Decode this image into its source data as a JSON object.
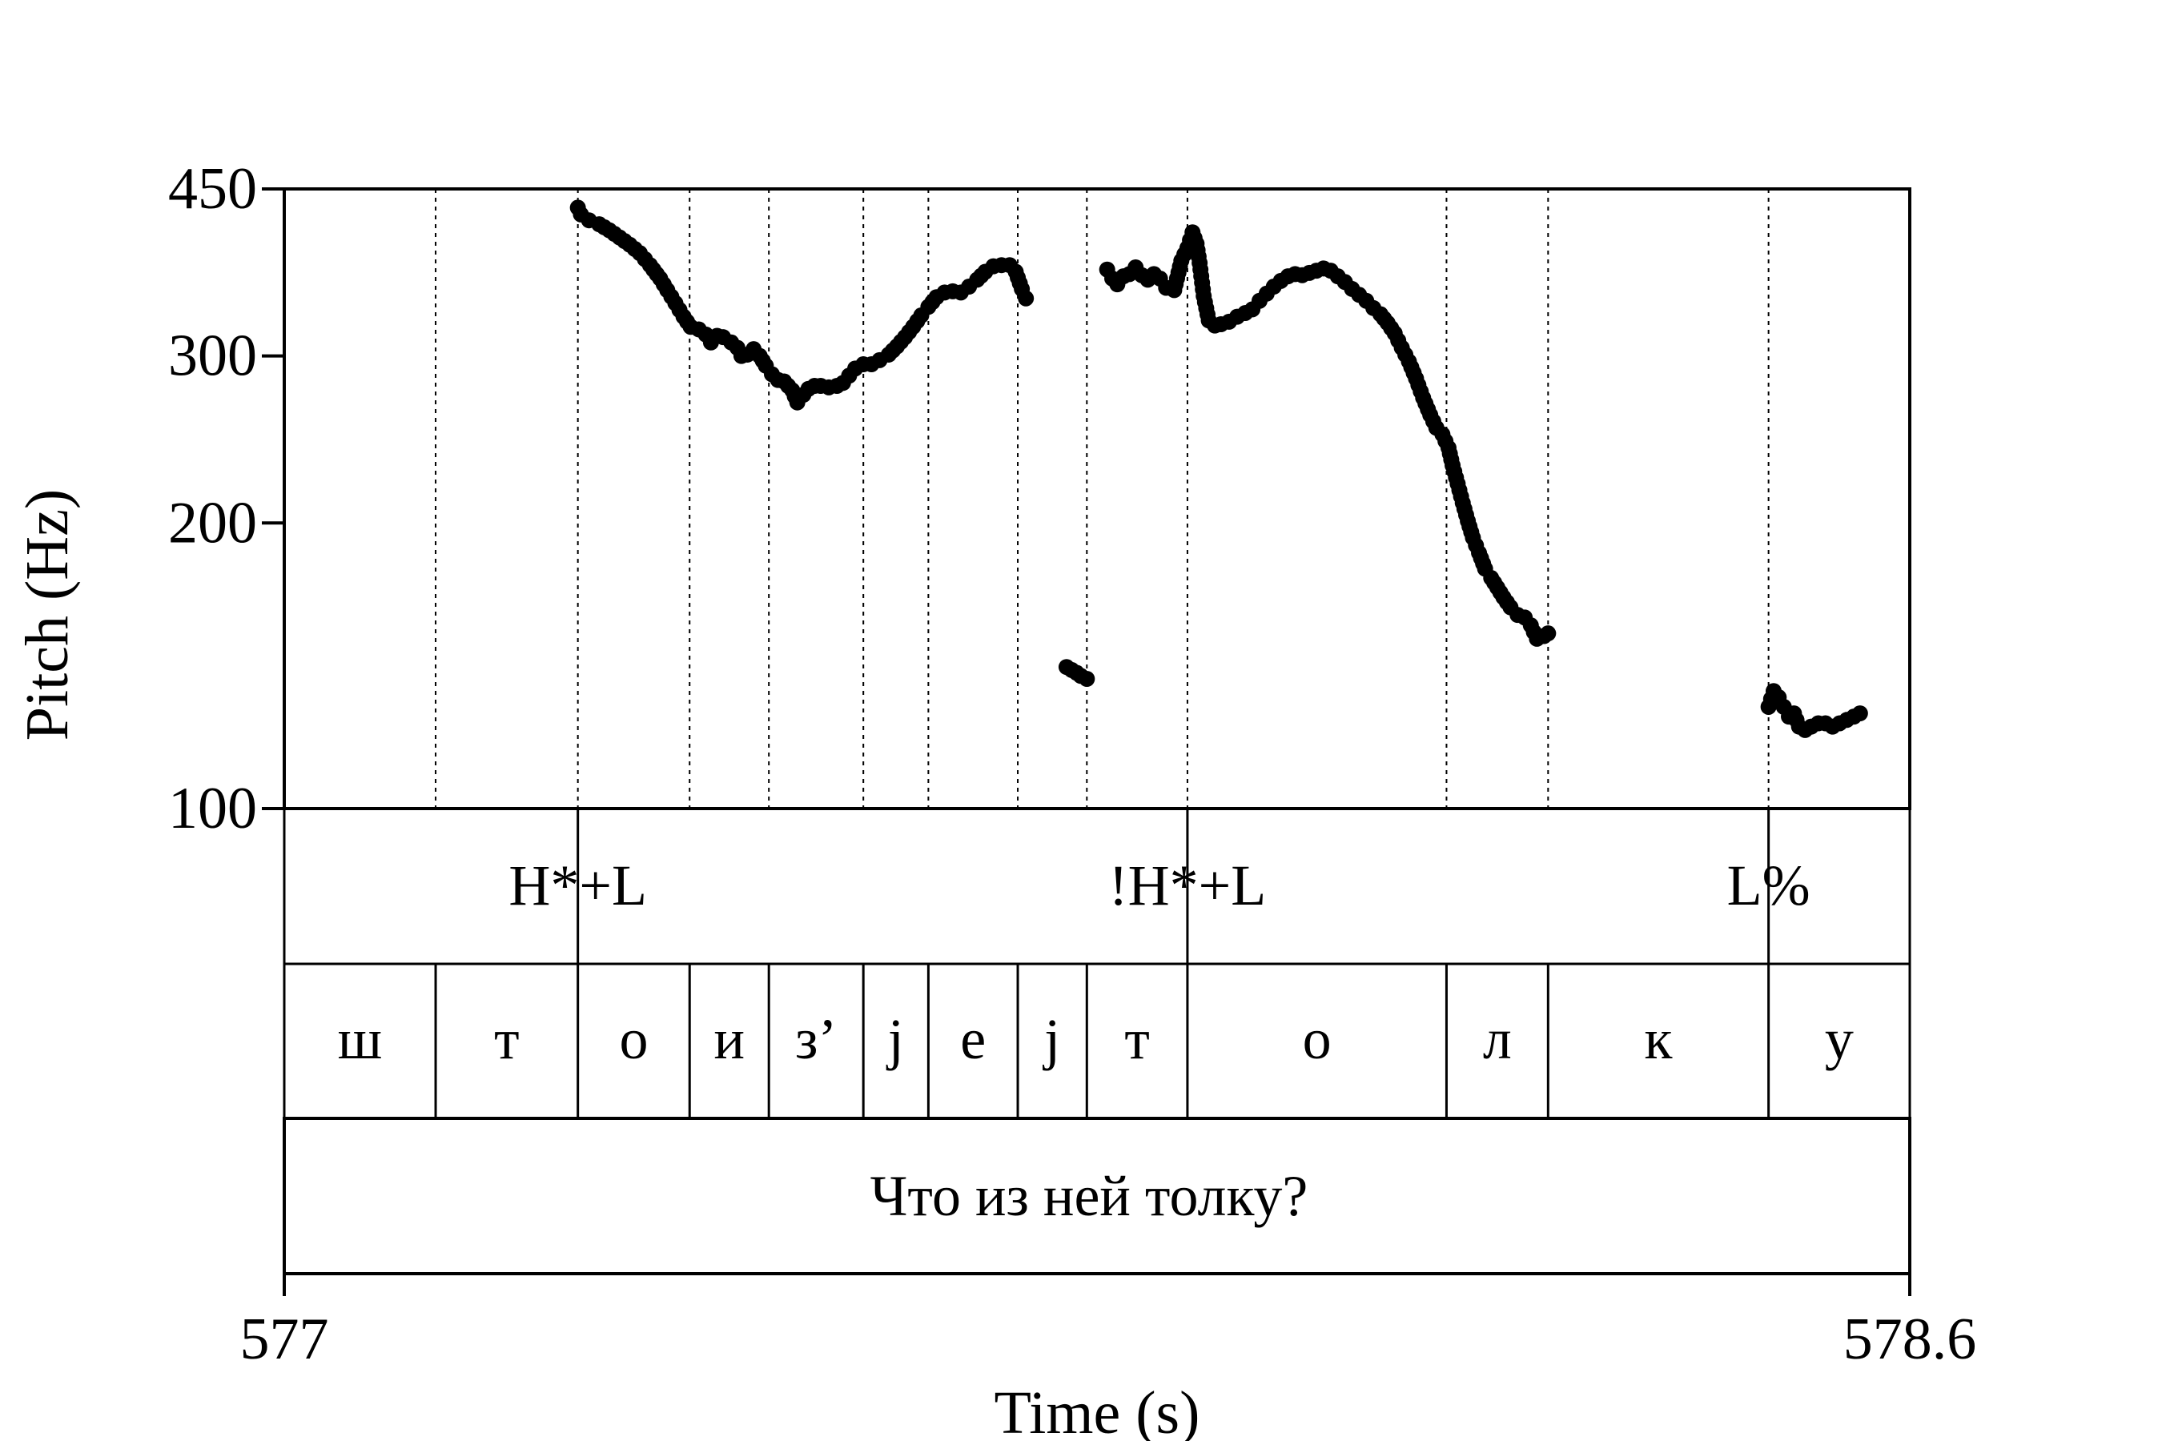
{
  "chart_data": {
    "type": "scatter",
    "title": "",
    "xlabel": "Time (s)",
    "ylabel": "Pitch (Hz)",
    "x_range": [
      577,
      578.6
    ],
    "x_tick_labels": [
      "577",
      "578.6"
    ],
    "y_scale": "log",
    "ylim": [
      100,
      450
    ],
    "y_ticks": [
      100,
      200,
      300,
      450
    ],
    "y_tick_labels": [
      "100",
      "200",
      "300",
      "450"
    ],
    "grid": false,
    "point_color": "#000000",
    "segment_boundaries": [
      577.149,
      577.289,
      577.399,
      577.477,
      577.57,
      577.634,
      577.722,
      577.79,
      577.889,
      578.144,
      578.244,
      578.461
    ],
    "tones": [
      {
        "label": "H*+L",
        "time": 577.289
      },
      {
        "label": "!H*+L",
        "time": 577.889
      },
      {
        "label": "L%",
        "time": 578.461
      }
    ],
    "segments": [
      {
        "label": "ш",
        "start": 577.0,
        "end": 577.149
      },
      {
        "label": "т",
        "start": 577.149,
        "end": 577.289
      },
      {
        "label": "о",
        "start": 577.289,
        "end": 577.399
      },
      {
        "label": "и",
        "start": 577.399,
        "end": 577.477
      },
      {
        "label": "з’",
        "start": 577.477,
        "end": 577.57
      },
      {
        "label": "j",
        "start": 577.57,
        "end": 577.634
      },
      {
        "label": "е",
        "start": 577.634,
        "end": 577.722
      },
      {
        "label": "j",
        "start": 577.722,
        "end": 577.79
      },
      {
        "label": "т",
        "start": 577.79,
        "end": 577.889
      },
      {
        "label": "о",
        "start": 577.889,
        "end": 578.144
      },
      {
        "label": "л",
        "start": 578.144,
        "end": 578.244
      },
      {
        "label": "к",
        "start": 578.244,
        "end": 578.461
      },
      {
        "label": "у",
        "start": 578.461,
        "end": 578.6
      }
    ],
    "sentence": "Что из ней толку?",
    "series": [
      {
        "points": [
          [
            577.289,
            430
          ],
          [
            577.292,
            423
          ],
          [
            577.3,
            417
          ],
          [
            577.31,
            413
          ],
          [
            577.32,
            407
          ],
          [
            577.33,
            400
          ],
          [
            577.34,
            393
          ],
          [
            577.35,
            385
          ],
          [
            577.36,
            374
          ],
          [
            577.37,
            362
          ],
          [
            577.377,
            352
          ],
          [
            577.385,
            341
          ],
          [
            577.393,
            330
          ],
          [
            577.4,
            322
          ],
          [
            577.408,
            320
          ],
          [
            577.415,
            316
          ],
          [
            577.42,
            310
          ],
          [
            577.426,
            315
          ],
          [
            577.432,
            314
          ],
          [
            577.44,
            310
          ],
          [
            577.446,
            306
          ],
          [
            577.45,
            300
          ],
          [
            577.456,
            301
          ],
          [
            577.462,
            305
          ],
          [
            577.468,
            300
          ],
          [
            577.474,
            293
          ],
          [
            577.48,
            287
          ],
          [
            577.486,
            283
          ],
          [
            577.492,
            282
          ],
          [
            577.5,
            276
          ],
          [
            577.505,
            268
          ],
          [
            577.511,
            273
          ],
          [
            577.516,
            277
          ],
          [
            577.522,
            279
          ],
          [
            577.528,
            279
          ],
          [
            577.536,
            278
          ],
          [
            577.544,
            279
          ],
          [
            577.55,
            281
          ],
          [
            577.556,
            286
          ],
          [
            577.562,
            291
          ],
          [
            577.57,
            294
          ],
          [
            577.578,
            294
          ],
          [
            577.586,
            297
          ],
          [
            577.595,
            301
          ],
          [
            577.603,
            307
          ],
          [
            577.611,
            314
          ],
          [
            577.619,
            322
          ],
          [
            577.627,
            331
          ],
          [
            577.634,
            338
          ],
          [
            577.642,
            346
          ],
          [
            577.65,
            350
          ],
          [
            577.658,
            351
          ],
          [
            577.666,
            350
          ],
          [
            577.674,
            355
          ],
          [
            577.682,
            361
          ],
          [
            577.69,
            368
          ],
          [
            577.698,
            373
          ],
          [
            577.706,
            374
          ],
          [
            577.714,
            374
          ],
          [
            577.72,
            368
          ],
          [
            577.726,
            353
          ],
          [
            577.73,
            345
          ],
          [
            577.77,
            141
          ],
          [
            577.775,
            140
          ],
          [
            577.78,
            139
          ],
          [
            577.784,
            138
          ],
          [
            577.79,
            137
          ]
        ]
      },
      {
        "points": [
          [
            577.81,
            370
          ],
          [
            577.815,
            362
          ],
          [
            577.82,
            357
          ],
          [
            577.826,
            364
          ],
          [
            577.832,
            366
          ],
          [
            577.838,
            372
          ],
          [
            577.844,
            365
          ],
          [
            577.85,
            361
          ],
          [
            577.856,
            366
          ],
          [
            577.862,
            362
          ],
          [
            577.868,
            354
          ],
          [
            577.876,
            352
          ],
          [
            577.883,
            378
          ],
          [
            577.889,
            390
          ],
          [
            577.894,
            405
          ],
          [
            577.898,
            394
          ],
          [
            577.901,
            376
          ],
          [
            577.905,
            347
          ],
          [
            577.91,
            327
          ],
          [
            577.916,
            323
          ],
          [
            577.922,
            324
          ],
          [
            577.93,
            326
          ],
          [
            577.938,
            330
          ],
          [
            577.946,
            333
          ],
          [
            577.953,
            336
          ],
          [
            577.96,
            343
          ],
          [
            577.967,
            349
          ],
          [
            577.974,
            355
          ],
          [
            577.981,
            360
          ],
          [
            577.988,
            364
          ],
          [
            577.995,
            366
          ],
          [
            578.002,
            365
          ],
          [
            578.009,
            367
          ],
          [
            578.016,
            369
          ],
          [
            578.023,
            371
          ],
          [
            578.03,
            369
          ],
          [
            578.037,
            364
          ],
          [
            578.044,
            359
          ],
          [
            578.051,
            353
          ],
          [
            578.058,
            348
          ],
          [
            578.065,
            343
          ],
          [
            578.072,
            337
          ],
          [
            578.079,
            332
          ],
          [
            578.086,
            325
          ],
          [
            578.093,
            317
          ],
          [
            578.1,
            306
          ],
          [
            578.107,
            296
          ],
          [
            578.114,
            284
          ],
          [
            578.121,
            271
          ],
          [
            578.128,
            260
          ],
          [
            578.134,
            252
          ],
          [
            578.14,
            248
          ],
          [
            578.146,
            240
          ],
          [
            578.15,
            230
          ],
          [
            578.155,
            220
          ],
          [
            578.16,
            210
          ],
          [
            578.165,
            201
          ],
          [
            578.17,
            193
          ],
          [
            578.176,
            186
          ],
          [
            578.182,
            179
          ],
          [
            578.188,
            175
          ],
          [
            578.194,
            171
          ],
          [
            578.2,
            167
          ],
          [
            578.207,
            163
          ],
          [
            578.214,
            160
          ],
          [
            578.221,
            159
          ],
          [
            578.227,
            156
          ],
          [
            578.233,
            151
          ],
          [
            578.24,
            152
          ],
          [
            578.244,
            153
          ]
        ]
      },
      {
        "points": [
          [
            578.461,
            128
          ],
          [
            578.466,
            133
          ],
          [
            578.471,
            131
          ],
          [
            578.476,
            128
          ],
          [
            578.481,
            125
          ],
          [
            578.486,
            126
          ],
          [
            578.491,
            122
          ],
          [
            578.497,
            121
          ],
          [
            578.503,
            122
          ],
          [
            578.51,
            123
          ],
          [
            578.517,
            123
          ],
          [
            578.524,
            122
          ],
          [
            578.531,
            123
          ],
          [
            578.538,
            124
          ],
          [
            578.545,
            125
          ],
          [
            578.551,
            126
          ]
        ]
      }
    ]
  }
}
